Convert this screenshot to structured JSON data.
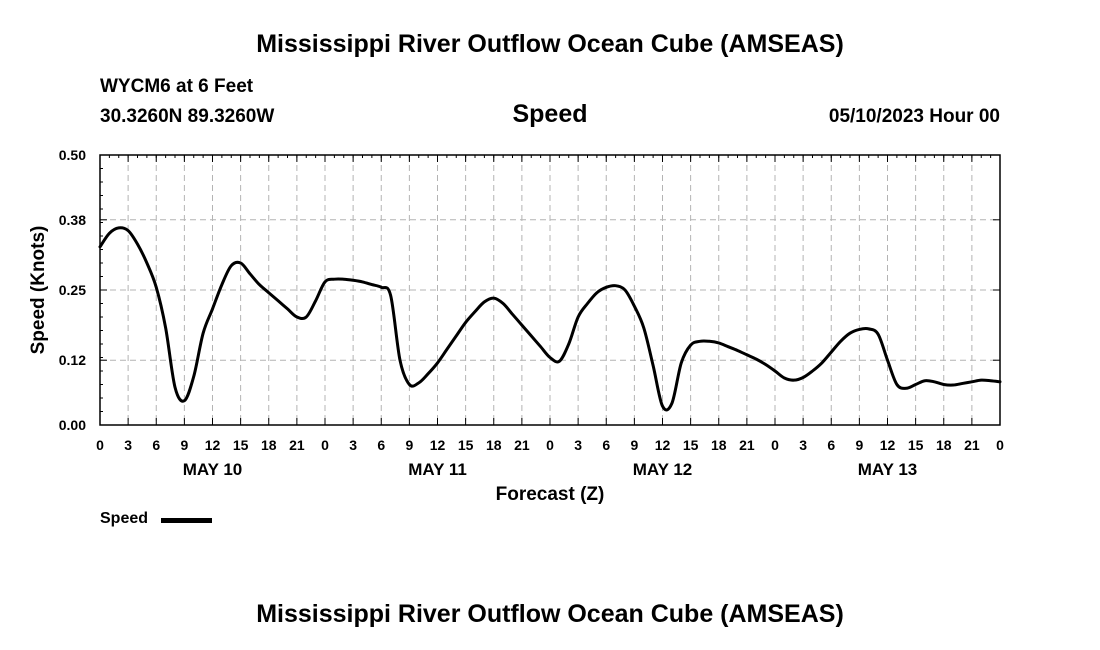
{
  "page_title": "Mississippi River Outflow Ocean Cube (AMSEAS)",
  "footer_title": "Mississippi River Outflow Ocean Cube (AMSEAS)",
  "station": "WYCM6 at 6 Feet",
  "coordinates": "30.3260N  89.3260W",
  "date_label": "05/10/2023 Hour 00",
  "chart_data": {
    "type": "line",
    "title": "Speed",
    "xlabel": "Forecast (Z)",
    "ylabel": "Speed (Knots)",
    "ylim": [
      0,
      0.5
    ],
    "xlim": [
      0,
      96
    ],
    "yticks": [
      0.0,
      0.12,
      0.25,
      0.38,
      0.5
    ],
    "ytick_labels": [
      "0.00",
      "0.12",
      "0.25",
      "0.38",
      "0.50"
    ],
    "xtick_hours": [
      0,
      3,
      6,
      9,
      12,
      15,
      18,
      21,
      24,
      27,
      30,
      33,
      36,
      39,
      42,
      45,
      48,
      51,
      54,
      57,
      60,
      63,
      66,
      69,
      72,
      75,
      78,
      81,
      84,
      87,
      90,
      93,
      96
    ],
    "xtick_labels": [
      "0",
      "3",
      "6",
      "9",
      "12",
      "15",
      "18",
      "21",
      "0",
      "3",
      "6",
      "9",
      "12",
      "15",
      "18",
      "21",
      "0",
      "3",
      "6",
      "9",
      "12",
      "15",
      "18",
      "21",
      "0",
      "3",
      "6",
      "9",
      "12",
      "15",
      "18",
      "21",
      "0"
    ],
    "day_labels": [
      {
        "hour": 12,
        "label": "MAY 10"
      },
      {
        "hour": 36,
        "label": "MAY 11"
      },
      {
        "hour": 60,
        "label": "MAY 12"
      },
      {
        "hour": 84,
        "label": "MAY 13"
      }
    ],
    "grid": true,
    "legend_position": "bottom-left",
    "series": [
      {
        "name": "Speed",
        "color": "#000000",
        "x": [
          0,
          1,
          2,
          3,
          4,
          5,
          6,
          7,
          8,
          9,
          10,
          11,
          12,
          13,
          14,
          15,
          16,
          17,
          18,
          19,
          20,
          21,
          22,
          23,
          24,
          25,
          26,
          27,
          28,
          29,
          30,
          31,
          32,
          33,
          34,
          35,
          36,
          37,
          38,
          39,
          40,
          41,
          42,
          43,
          44,
          45,
          46,
          47,
          48,
          49,
          50,
          51,
          52,
          53,
          54,
          55,
          56,
          57,
          58,
          59,
          60,
          61,
          62,
          63,
          64,
          65,
          66,
          67,
          68,
          69,
          70,
          71,
          72,
          73,
          74,
          75,
          76,
          77,
          78,
          79,
          80,
          81,
          82,
          83,
          84,
          85,
          86,
          87,
          88,
          89,
          90,
          91,
          92,
          93,
          94,
          95,
          96
        ],
        "values": [
          0.33,
          0.355,
          0.365,
          0.36,
          0.335,
          0.3,
          0.255,
          0.18,
          0.07,
          0.045,
          0.09,
          0.17,
          0.215,
          0.26,
          0.295,
          0.3,
          0.28,
          0.26,
          0.245,
          0.23,
          0.215,
          0.2,
          0.2,
          0.23,
          0.265,
          0.27,
          0.27,
          0.268,
          0.265,
          0.26,
          0.255,
          0.24,
          0.12,
          0.075,
          0.078,
          0.095,
          0.115,
          0.14,
          0.165,
          0.19,
          0.21,
          0.228,
          0.235,
          0.225,
          0.205,
          0.185,
          0.165,
          0.145,
          0.125,
          0.118,
          0.15,
          0.2,
          0.225,
          0.245,
          0.255,
          0.258,
          0.25,
          0.22,
          0.18,
          0.11,
          0.035,
          0.04,
          0.115,
          0.148,
          0.155,
          0.155,
          0.152,
          0.145,
          0.138,
          0.13,
          0.122,
          0.112,
          0.1,
          0.087,
          0.083,
          0.088,
          0.1,
          0.115,
          0.135,
          0.155,
          0.17,
          0.177,
          0.178,
          0.168,
          0.12,
          0.075,
          0.068,
          0.075,
          0.082,
          0.08,
          0.075,
          0.074,
          0.077,
          0.08,
          0.083,
          0.082,
          0.08
        ]
      }
    ]
  }
}
